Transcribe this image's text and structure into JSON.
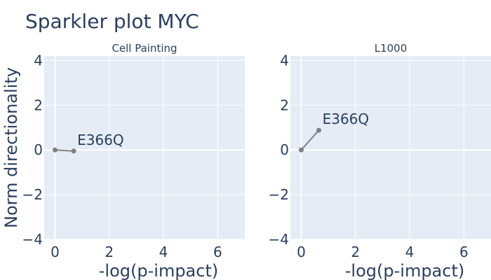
{
  "title": "Sparkler plot MYC",
  "chart_data": [
    {
      "type": "line",
      "title": "Cell Painting",
      "xlabel": "-log(p-impact)",
      "ylabel": "Norm directionality",
      "xlim": [
        -0.4,
        7
      ],
      "ylim": [
        -4,
        4.2
      ],
      "xticks": [
        0,
        2,
        4,
        6
      ],
      "yticks": [
        -4,
        -2,
        0,
        2,
        4
      ],
      "grid": true,
      "series": [
        {
          "points": [
            {
              "x": 0,
              "y": 0
            },
            {
              "x": 0.69,
              "y": -0.05
            }
          ],
          "color": "#808080"
        }
      ],
      "annotations": [
        {
          "text": "E366Q",
          "x": 0.69,
          "y": -0.05
        }
      ]
    },
    {
      "type": "line",
      "title": "L1000",
      "xlabel": "-log(p-impact)",
      "ylabel": "",
      "xlim": [
        -0.4,
        7
      ],
      "ylim": [
        -4,
        4.2
      ],
      "xticks": [
        0,
        2,
        4,
        6
      ],
      "yticks": [
        -4,
        -2,
        0,
        2,
        4
      ],
      "grid": true,
      "series": [
        {
          "points": [
            {
              "x": 0,
              "y": 0
            },
            {
              "x": 0.65,
              "y": 0.88
            }
          ],
          "color": "#808080"
        }
      ],
      "annotations": [
        {
          "text": "E366Q",
          "x": 0.65,
          "y": 0.88
        }
      ]
    }
  ],
  "colors": {
    "plot_bg": "#e5ecf6",
    "grid": "#ffffff",
    "text": "#2a3f5f",
    "line": "#808080"
  }
}
